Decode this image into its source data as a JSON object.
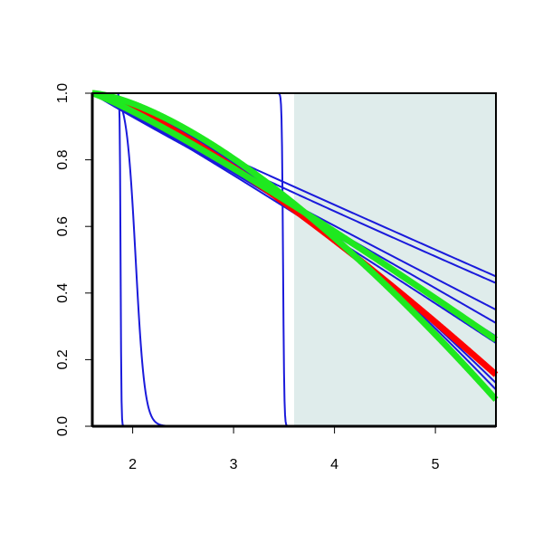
{
  "chart_data": {
    "type": "line",
    "title": "",
    "xlabel": "",
    "ylabel": "",
    "xlim": [
      1.6,
      5.6
    ],
    "ylim": [
      0,
      1
    ],
    "x_ticks": [
      "2",
      "3",
      "4",
      "5"
    ],
    "y_ticks": [
      "0.0",
      "0.2",
      "0.4",
      "0.6",
      "0.8",
      "1.0"
    ],
    "shaded_region": {
      "x_from": 3.6,
      "x_to": 5.6,
      "color": "#dfeceb"
    },
    "colors": {
      "blue": "#1a1adb",
      "red": "#ff0000",
      "green": "#1fe81f",
      "axis": "#000000"
    },
    "series": [
      {
        "color": "blue",
        "form": "step",
        "center": 1.88,
        "width": 0.004,
        "end": 0.0
      },
      {
        "color": "blue",
        "form": "logistic",
        "center": 2.03,
        "width": 0.045,
        "end": 0.0
      },
      {
        "color": "blue",
        "form": "step",
        "center": 3.49,
        "width": 0.006,
        "end": 0.0
      },
      {
        "color": "blue",
        "form": "power",
        "end": 0.45,
        "p": 0.97
      },
      {
        "color": "blue",
        "form": "power",
        "end": 0.43,
        "p": 0.93
      },
      {
        "color": "blue",
        "form": "power",
        "end": 0.35,
        "p": 0.96
      },
      {
        "color": "blue",
        "form": "power",
        "end": 0.31,
        "p": 1.01
      },
      {
        "color": "blue",
        "form": "power",
        "end": 0.27,
        "p": 1.06
      },
      {
        "color": "blue",
        "form": "power",
        "end": 0.25,
        "p": 1.06
      },
      {
        "color": "blue",
        "form": "power",
        "end": 0.13,
        "p": 1.36
      },
      {
        "color": "blue",
        "form": "power",
        "end": 0.11,
        "p": 1.42
      },
      {
        "color": "red",
        "form": "power",
        "end": 0.155,
        "p": 1.27,
        "thick": true
      },
      {
        "color": "green",
        "form": "power",
        "end": 0.26,
        "p": 1.13,
        "thick": true
      },
      {
        "color": "green",
        "form": "power",
        "end": 0.08,
        "p": 1.47,
        "thick": true
      }
    ]
  }
}
